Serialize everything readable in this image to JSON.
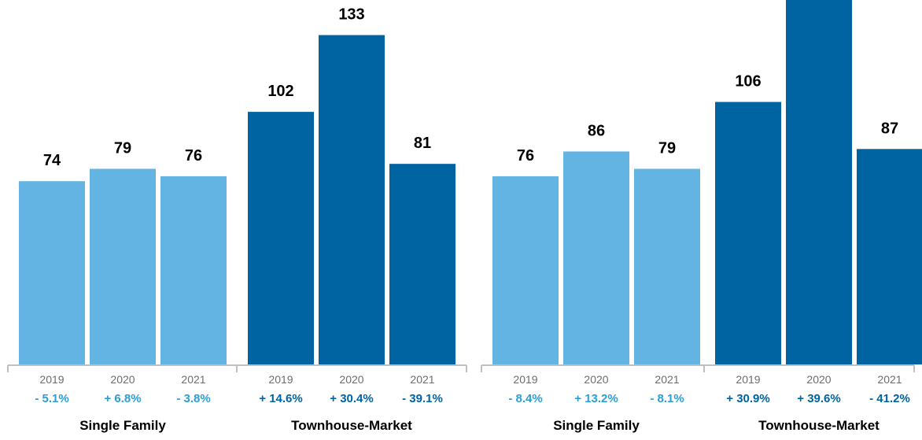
{
  "colors": {
    "light": "#63b3e3",
    "dark": "#0064a3",
    "light_pct": "#2a9fd6",
    "dark_pct": "#0064a3",
    "axis": "#bfbfbf",
    "tick_text": "#6d6d6d",
    "label_text": "#000000"
  },
  "chart_data": [
    {
      "type": "bar",
      "ylim": [
        0,
        140
      ],
      "groups": [
        {
          "name": "Single Family",
          "color_key": "light",
          "years": [
            "2019",
            "2020",
            "2021"
          ],
          "values": [
            74,
            79,
            76
          ],
          "changes": [
            "- 5.1%",
            "+ 6.8%",
            "- 3.8%"
          ]
        },
        {
          "name": "Townhouse-Market",
          "color_key": "dark",
          "years": [
            "2019",
            "2020",
            "2021"
          ],
          "values": [
            102,
            133,
            81
          ],
          "changes": [
            "+ 14.6%",
            "+ 30.4%",
            "- 39.1%"
          ]
        }
      ]
    },
    {
      "type": "bar",
      "ylim": [
        0,
        155
      ],
      "groups": [
        {
          "name": "Single Family",
          "color_key": "light",
          "years": [
            "2019",
            "2020",
            "2021"
          ],
          "values": [
            76,
            86,
            79
          ],
          "changes": [
            "- 8.4%",
            "+ 13.2%",
            "- 8.1%"
          ]
        },
        {
          "name": "Townhouse-Market",
          "color_key": "dark",
          "years": [
            "2019",
            "2020",
            "2021"
          ],
          "values": [
            106,
            148,
            87
          ],
          "changes": [
            "+ 30.9%",
            "+ 39.6%",
            "- 41.2%"
          ]
        }
      ]
    }
  ]
}
